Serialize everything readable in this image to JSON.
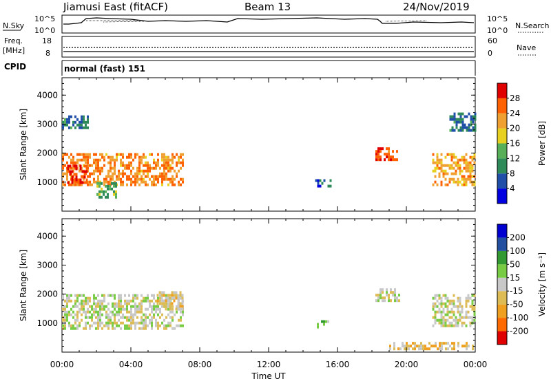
{
  "header": {
    "station": "Jiamusi East (fitACF)",
    "beam": "Beam 13",
    "date": "24/Nov/2019"
  },
  "strips": {
    "nsky_label": "N.Sky",
    "nsky_top": "10^5",
    "nsky_bottom": "10^0",
    "nsearch_label": "N.Search",
    "nsearch_top": "10^5",
    "nsearch_bottom": "10^0",
    "freq_label": "Freq.",
    "freq_unit": "[MHz]",
    "freq_top": "18",
    "freq_bottom": "8",
    "nave_label": "Nave",
    "nave_top": "60",
    "nave_bottom": "0",
    "cpid_label": "CPID",
    "cpid_value": "normal (fast) 151"
  },
  "colorbars": {
    "power": {
      "label": "Power [dB]",
      "ticks": [
        "4",
        "8",
        "12",
        "16",
        "20",
        "24",
        "28"
      ],
      "colors": [
        "#0000e0",
        "#1f4fa8",
        "#2f8a5a",
        "#57b057",
        "#e8d020",
        "#f0a030",
        "#ff6000",
        "#e00000"
      ]
    },
    "velocity": {
      "label": "Velocity [m s⁻¹]",
      "ticks": [
        "-200",
        "-100",
        "-50",
        "-15",
        "15",
        "50",
        "100",
        "200"
      ],
      "colors": [
        "#e00000",
        "#ff6a00",
        "#f0a020",
        "#ddbb55",
        "#c8c8c8",
        "#77cc44",
        "#339933",
        "#224fa0",
        "#0000d0"
      ]
    }
  },
  "chart_data": [
    {
      "type": "heatmap",
      "title": "Power",
      "ylabel": "Slant Range [km]",
      "xlabel": "Time UT",
      "x_range": [
        "00:00",
        "24:00"
      ],
      "ylim": [
        0,
        4600
      ],
      "y_ticks": [
        "1000",
        "2000",
        "3000",
        "4000"
      ],
      "x_ticks": [
        "00:00",
        "04:00",
        "08:00",
        "12:00",
        "16:00",
        "20:00",
        "00:00"
      ],
      "z_label": "Power [dB]",
      "z_range": [
        0,
        30
      ],
      "regions": [
        {
          "t0": 0.0,
          "t1": 7.0,
          "r0": 900,
          "r1": 2000,
          "value": 22
        },
        {
          "t0": 0.3,
          "t1": 1.4,
          "r0": 1000,
          "r1": 1600,
          "value": 28
        },
        {
          "t0": 2.0,
          "t1": 3.2,
          "r0": 500,
          "r1": 1000,
          "value": 12
        },
        {
          "t0": 0.0,
          "t1": 1.5,
          "r0": 2900,
          "r1": 3300,
          "value": 8
        },
        {
          "t0": 14.7,
          "t1": 15.6,
          "r0": 900,
          "r1": 1100,
          "value": 6
        },
        {
          "t0": 18.2,
          "t1": 19.5,
          "r0": 1800,
          "r1": 2200,
          "value": 26
        },
        {
          "t0": 21.5,
          "t1": 24.0,
          "r0": 900,
          "r1": 2000,
          "value": 20
        },
        {
          "t0": 22.5,
          "t1": 24.0,
          "r0": 2800,
          "r1": 3400,
          "value": 8
        }
      ]
    },
    {
      "type": "heatmap",
      "title": "Velocity",
      "ylabel": "Slant Range [km]",
      "xlabel": "Time UT",
      "x_range": [
        "00:00",
        "24:00"
      ],
      "ylim": [
        0,
        4600
      ],
      "y_ticks": [
        "1000",
        "2000",
        "3000",
        "4000"
      ],
      "x_ticks": [
        "00:00",
        "04:00",
        "08:00",
        "12:00",
        "16:00",
        "20:00",
        "00:00"
      ],
      "z_label": "Velocity [m s⁻¹]",
      "z_range": [
        -250,
        250
      ],
      "regions": [
        {
          "t0": 0.0,
          "t1": 7.0,
          "r0": 800,
          "r1": 2000,
          "value": 0
        },
        {
          "t0": 5.5,
          "t1": 7.0,
          "r0": 1500,
          "r1": 2100,
          "value": -40
        },
        {
          "t0": 14.8,
          "t1": 15.4,
          "r0": 900,
          "r1": 1100,
          "value": 60
        },
        {
          "t0": 18.2,
          "t1": 19.6,
          "r0": 1800,
          "r1": 2200,
          "value": 0
        },
        {
          "t0": 21.5,
          "t1": 24.0,
          "r0": 900,
          "r1": 2000,
          "value": 0
        },
        {
          "t0": 19.0,
          "t1": 24.0,
          "r0": 150,
          "r1": 350,
          "value": -60
        }
      ]
    }
  ]
}
